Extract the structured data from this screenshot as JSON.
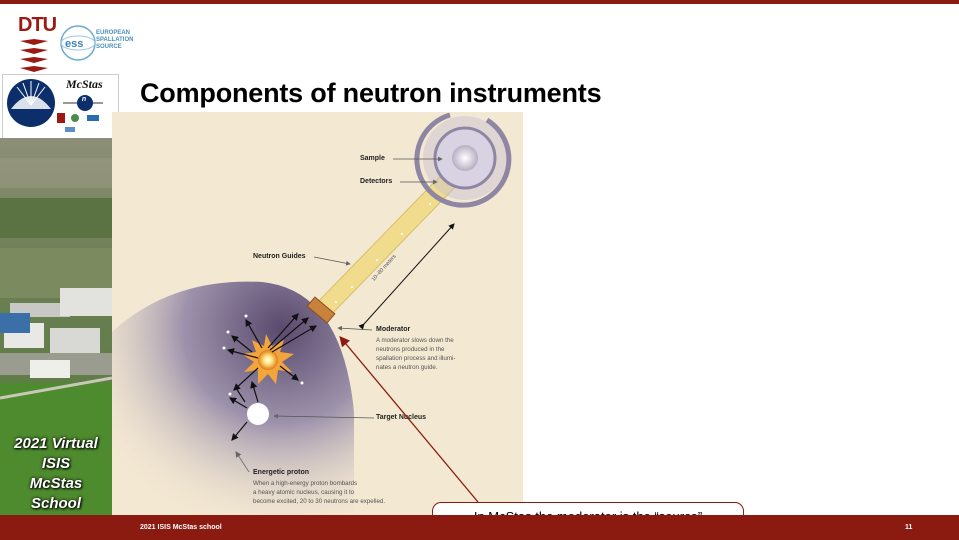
{
  "slide": {
    "title": "Components of neutron instruments",
    "footer": "2021 ISIS McStas school",
    "page_number": "11"
  },
  "logos": {
    "dtu": "DTU",
    "ess_lines": [
      "EUROPEAN",
      "SPALLATION",
      "SOURCE"
    ],
    "mcstas": "McStas",
    "mcstas_mark": "n"
  },
  "sidebar": {
    "school_lines": [
      "2021 Virtual",
      "ISIS",
      "McStas",
      "School"
    ]
  },
  "diagram": {
    "labels": {
      "sample": "Sample",
      "detectors": "Detectors",
      "neutron_guides": "Neutron Guides",
      "moderator": "Moderator",
      "target_nucleus": "Target Nucleus",
      "energetic_proton": "Energetic proton",
      "distance": "10–80 meters"
    },
    "descriptions": {
      "moderator": [
        "A moderator slows down the",
        "neutrons produced in the",
        "spallation process and illumi-",
        "nates a neutron guide."
      ],
      "proton": [
        "When a high-energy proton bombards",
        "a heavy atomic nucleus, causing it to",
        "become excited, 20 to 30 neutrons are expelled."
      ]
    }
  },
  "callout": {
    "text": "In McStas the moderator is the “source”"
  },
  "colors": {
    "accent": "#8b1a10",
    "diagram_bg": "#f3e8d2",
    "guide": "#f0dc8c",
    "moderator": "#c9813e"
  }
}
